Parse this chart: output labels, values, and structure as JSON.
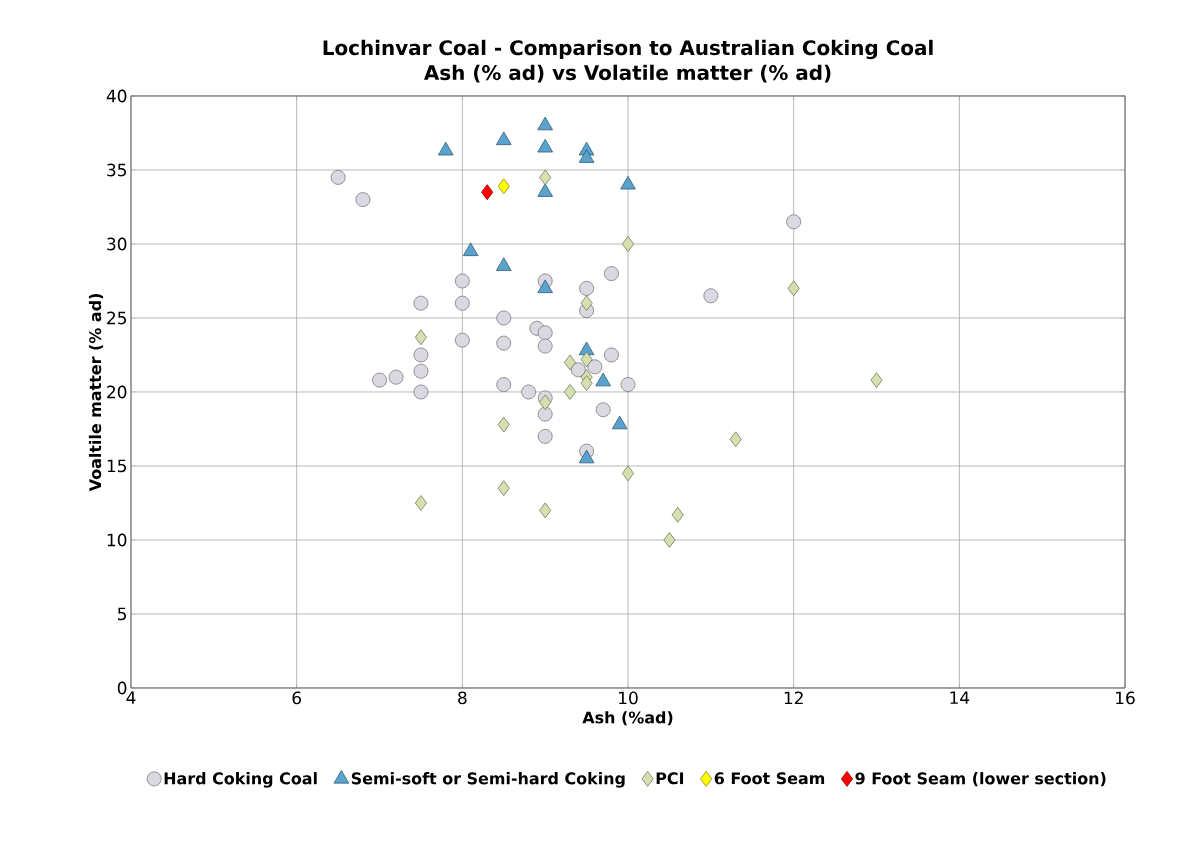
{
  "chart_data": {
    "type": "scatter",
    "title": "Lochinvar Coal - Comparison to Australian Coking Coal",
    "subtitle": "Ash (% ad) vs Volatile matter (% ad)",
    "xlabel": "Ash (%ad)",
    "ylabel": "Voaltile matter (% ad)",
    "xlim": [
      4,
      16
    ],
    "xticks": [
      4,
      6,
      8,
      10,
      12,
      14,
      16
    ],
    "ylim": [
      0,
      40
    ],
    "yticks": [
      0,
      5,
      10,
      15,
      20,
      25,
      30,
      35,
      40
    ],
    "grid": true,
    "legend": "bottom",
    "series": [
      {
        "name": "Hard Coking Coal",
        "color": "#dcd8e2",
        "marker": "circle",
        "x": [
          6.5,
          6.8,
          7.0,
          7.2,
          7.5,
          7.5,
          7.5,
          7.5,
          8,
          8,
          8,
          8.5,
          8.5,
          8.5,
          8.8,
          8.9,
          9,
          9,
          9,
          9,
          9,
          9,
          9.4,
          9.5,
          9.5,
          9.5,
          9.6,
          9.7,
          9.8,
          9.8,
          10,
          11,
          12
        ],
        "values": [
          34.5,
          33,
          20.8,
          21,
          26,
          22.5,
          21.4,
          20,
          27.5,
          26,
          23.5,
          25,
          23.3,
          20.5,
          20,
          24.3,
          27.5,
          24,
          23.1,
          19.6,
          18.5,
          17,
          21.5,
          27,
          25.5,
          16,
          21.7,
          18.8,
          28,
          22.5,
          20.5,
          26.5,
          31.5
        ]
      },
      {
        "name": "Semi-soft or Semi-hard Coking",
        "color": "#5ba3cf",
        "marker": "triangle",
        "x": [
          7.8,
          8.1,
          8.5,
          8.5,
          9,
          9,
          9,
          9,
          9.5,
          9.5,
          9.5,
          9.5,
          9.7,
          9.9,
          10
        ],
        "values": [
          36.3,
          29.5,
          37,
          28.5,
          38,
          36.5,
          33.5,
          27,
          36.3,
          35.8,
          22.8,
          15.5,
          20.7,
          17.8,
          34
        ]
      },
      {
        "name": "PCI",
        "color": "#d4e0b0",
        "marker": "diamond",
        "x": [
          7.5,
          7.5,
          8.5,
          8.5,
          9,
          9,
          9,
          9.3,
          9.3,
          9.5,
          9.5,
          9.5,
          9.5,
          10,
          10,
          10.5,
          10.6,
          11.3,
          12,
          13
        ],
        "values": [
          23.7,
          12.5,
          17.8,
          13.5,
          34.5,
          19.3,
          12,
          22,
          20,
          26,
          22.2,
          21,
          20.6,
          30,
          14.5,
          10,
          11.7,
          16.8,
          27,
          20.8
        ]
      },
      {
        "name": "6 Foot Seam",
        "color": "#ffff00",
        "marker": "diamond",
        "x": [
          8.5
        ],
        "values": [
          33.9
        ]
      },
      {
        "name": "9 Foot Seam (lower section)",
        "color": "#ff0000",
        "marker": "diamond",
        "x": [
          8.3
        ],
        "values": [
          33.5
        ]
      }
    ]
  }
}
